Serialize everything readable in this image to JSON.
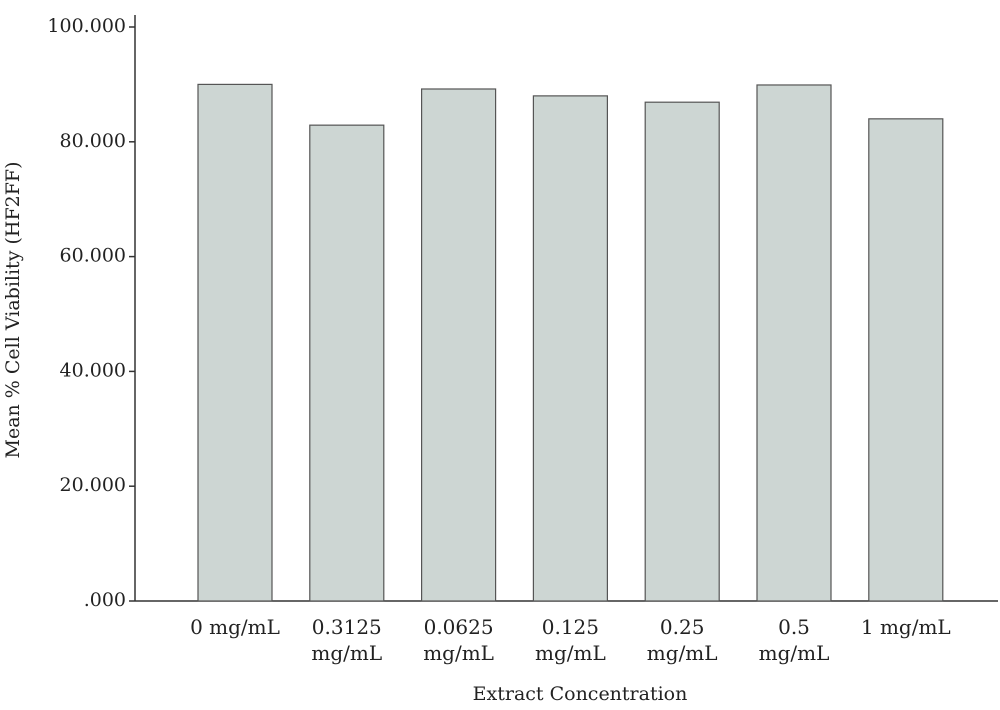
{
  "chart_data": {
    "type": "bar",
    "x_label": "Extract Concentration",
    "y_label": "Mean % Cell Viability (HF2FF)",
    "categories": [
      "0 mg/mL",
      "0.3125 mg/mL",
      "0.0625 mg/mL",
      "0.125 mg/mL",
      "0.25 mg/mL",
      "0.5 mg/mL",
      "1 mg/mL"
    ],
    "values": [
      90.0,
      82.9,
      89.2,
      88.0,
      86.9,
      89.9,
      84.0
    ],
    "color": "#cdd6d3",
    "ylim": [
      0,
      100
    ],
    "yticks": [
      {
        "value": 0,
        "label": ".000"
      },
      {
        "value": 20,
        "label": "20.000"
      },
      {
        "value": 40,
        "label": "40.000"
      },
      {
        "value": 60,
        "label": "60.000"
      },
      {
        "value": 80,
        "label": "80.000"
      },
      {
        "value": 100,
        "label": "100.000"
      }
    ],
    "grid": false
  }
}
